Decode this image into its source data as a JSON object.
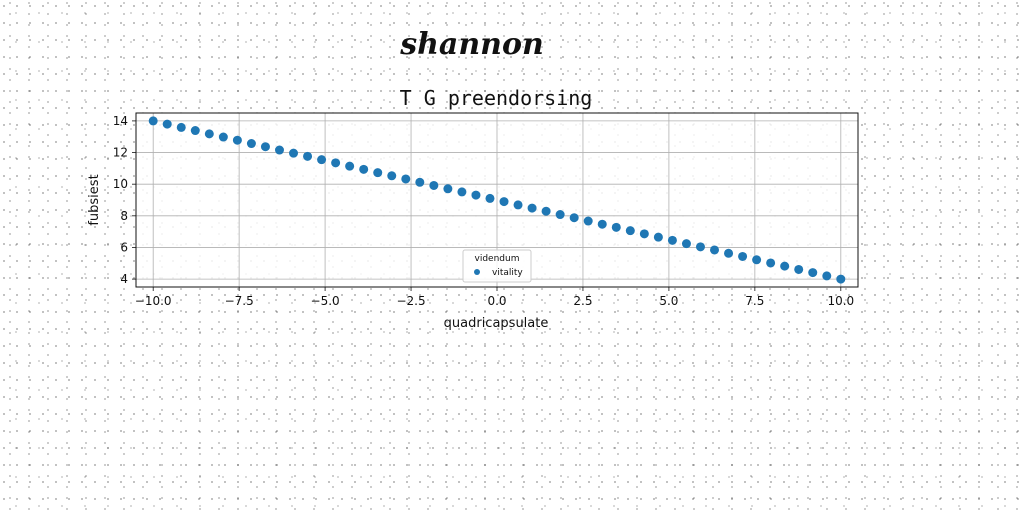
{
  "signature": "shannon",
  "chart_data": {
    "type": "scatter",
    "title": "T G preendorsing",
    "xlabel": "quadricapsulate",
    "ylabel": "fubsiest",
    "xlim": [
      -10.5,
      10.5
    ],
    "ylim": [
      3.5,
      14.5
    ],
    "xticks": [
      -10.0,
      -7.5,
      -5.0,
      -2.5,
      0.0,
      2.5,
      5.0,
      7.5,
      10.0
    ],
    "xtick_labels": [
      "−10.0",
      "−7.5",
      "−5.0",
      "−2.5",
      "0.0",
      "2.5",
      "5.0",
      "7.5",
      "10.0"
    ],
    "yticks": [
      4,
      6,
      8,
      10,
      12,
      14
    ],
    "ytick_labels": [
      "4",
      "6",
      "8",
      "10",
      "12",
      "14"
    ],
    "grid": true,
    "legend": {
      "title": "videndum",
      "placement": "lower center"
    },
    "series": [
      {
        "name": "vitality",
        "color": "#1f77b4",
        "x_start": -10.0,
        "x_end": 10.0,
        "count": 50,
        "y": [
          14.0,
          13.8,
          13.59,
          13.39,
          13.18,
          12.98,
          12.78,
          12.57,
          12.37,
          12.16,
          11.96,
          11.76,
          11.55,
          11.35,
          11.14,
          10.94,
          10.73,
          10.53,
          10.33,
          10.12,
          9.92,
          9.71,
          9.51,
          9.31,
          9.1,
          8.9,
          8.69,
          8.49,
          8.29,
          8.08,
          7.88,
          7.67,
          7.47,
          7.27,
          7.06,
          6.86,
          6.65,
          6.45,
          6.24,
          6.04,
          5.84,
          5.63,
          5.43,
          5.22,
          5.02,
          4.82,
          4.61,
          4.41,
          4.2,
          4.0
        ]
      }
    ]
  }
}
